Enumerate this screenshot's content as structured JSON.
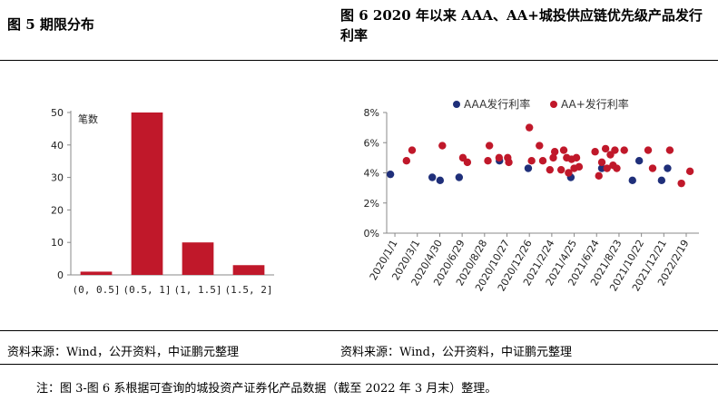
{
  "left_title": "图 5 期限分布",
  "right_title": "图 6 2020 年以来 AAA、AA+城投供应链优先级产品发行利率",
  "left_source": "资料来源：Wind，公开资料，中证鹏元整理",
  "right_source": "资料来源：Wind，公开资料，中证鹏元整理",
  "note": "注：图 3-图 6 系根据可查询的城投资产证券化产品数据（截至 2022 年 3 月末）整理。",
  "colors": {
    "bar": "#c0182a",
    "aaa": "#1f2f7a",
    "aaplus": "#c0182a",
    "axis": "#888888"
  },
  "chart_data": [
    {
      "type": "bar",
      "title": "",
      "legend": [
        "笔数"
      ],
      "legend_position": "top-left",
      "categories": [
        "(0, 0.5]",
        "(0.5, 1]",
        "(1, 1.5]",
        "(1.5, 2]"
      ],
      "values": [
        1,
        50,
        10,
        3
      ],
      "ylim": [
        0,
        50
      ],
      "yticks": [
        0,
        10,
        20,
        30,
        40,
        50
      ],
      "grid": false
    },
    {
      "type": "scatter",
      "title": "",
      "legend_position": "top",
      "grid": false,
      "ylim": [
        0,
        8
      ],
      "yticks": [
        "0%",
        "2%",
        "4%",
        "6%",
        "8%"
      ],
      "xlim": [
        "2019-12-10",
        "2022-03-25"
      ],
      "xticks": [
        "2020/1/1",
        "2020/3/1",
        "2020/4/30",
        "2020/6/29",
        "2020/8/28",
        "2020/10/27",
        "2020/12/26",
        "2021/2/24",
        "2021/4/25",
        "2021/6/24",
        "2021/8/23",
        "2021/10/22",
        "2021/12/21",
        "2022/2/19"
      ],
      "series": [
        {
          "name": "AAA发行利率",
          "points": [
            [
              "2019-12-20",
              3.9
            ],
            [
              "2020-04-10",
              3.7
            ],
            [
              "2020-05-01",
              3.5
            ],
            [
              "2020-06-21",
              3.7
            ],
            [
              "2020-10-07",
              4.8
            ],
            [
              "2020-12-23",
              4.3
            ],
            [
              "2021-04-16",
              3.7
            ],
            [
              "2021-07-08",
              4.3
            ],
            [
              "2021-09-28",
              3.5
            ],
            [
              "2021-10-16",
              4.8
            ],
            [
              "2021-12-15",
              3.5
            ],
            [
              "2021-12-31",
              4.3
            ]
          ]
        },
        {
          "name": "AA+发行利率",
          "points": [
            [
              "2020-02-01",
              4.8
            ],
            [
              "2020-02-16",
              5.5
            ],
            [
              "2020-05-07",
              5.8
            ],
            [
              "2020-07-01",
              5.0
            ],
            [
              "2020-07-13",
              4.7
            ],
            [
              "2020-09-06",
              4.8
            ],
            [
              "2020-09-10",
              5.8
            ],
            [
              "2020-10-06",
              5.0
            ],
            [
              "2020-10-29",
              5.0
            ],
            [
              "2020-11-01",
              4.7
            ],
            [
              "2020-12-26",
              7.0
            ],
            [
              "2021-01-01",
              4.8
            ],
            [
              "2021-01-22",
              5.8
            ],
            [
              "2021-01-31",
              4.8
            ],
            [
              "2021-02-19",
              4.2
            ],
            [
              "2021-02-28",
              5.0
            ],
            [
              "2021-03-04",
              5.4
            ],
            [
              "2021-03-21",
              4.2
            ],
            [
              "2021-03-28",
              5.5
            ],
            [
              "2021-04-05",
              5.0
            ],
            [
              "2021-04-10",
              4.0
            ],
            [
              "2021-04-18",
              4.9
            ],
            [
              "2021-04-25",
              4.3
            ],
            [
              "2021-05-01",
              5.0
            ],
            [
              "2021-05-08",
              4.4
            ],
            [
              "2021-06-20",
              5.4
            ],
            [
              "2021-06-30",
              3.8
            ],
            [
              "2021-07-08",
              4.7
            ],
            [
              "2021-07-18",
              5.6
            ],
            [
              "2021-07-22",
              4.3
            ],
            [
              "2021-07-31",
              5.2
            ],
            [
              "2021-08-07",
              4.5
            ],
            [
              "2021-08-12",
              5.5
            ],
            [
              "2021-08-17",
              4.3
            ],
            [
              "2021-09-06",
              5.5
            ],
            [
              "2021-11-09",
              5.5
            ],
            [
              "2021-11-21",
              4.3
            ],
            [
              "2022-01-06",
              5.5
            ],
            [
              "2022-02-06",
              3.3
            ],
            [
              "2022-03-01",
              4.1
            ]
          ]
        }
      ]
    }
  ]
}
